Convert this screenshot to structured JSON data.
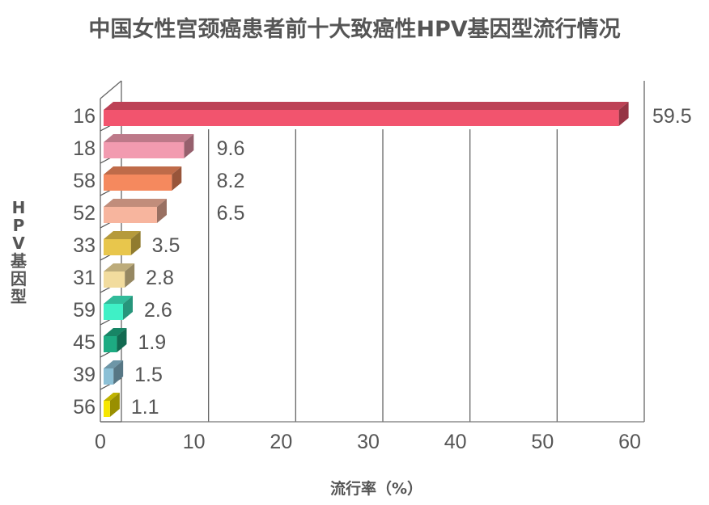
{
  "title": "中国女性宫颈癌患者前十大致癌性HPV基因型流行情况",
  "ylabel": "HPV基因型",
  "xlabel": "流行率（%）",
  "chart_data": {
    "type": "bar",
    "orientation": "horizontal",
    "style": "3d",
    "title": "中国女性宫颈癌患者前十大致癌性HPV基因型流行情况",
    "xlabel": "流行率（%）",
    "ylabel": "HPV基因型",
    "xlim": [
      0,
      60
    ],
    "xticks": [
      0,
      10,
      20,
      30,
      40,
      50,
      60
    ],
    "grid": "vertical",
    "legend": "none",
    "categories": [
      "16",
      "18",
      "58",
      "52",
      "33",
      "31",
      "59",
      "45",
      "39",
      "56"
    ],
    "values": [
      59.5,
      9.6,
      8.2,
      6.5,
      3.5,
      2.8,
      2.6,
      1.9,
      1.5,
      1.1
    ],
    "value_labels": [
      "59.5",
      "9.6",
      "8.2",
      "6.5",
      "3.5",
      "2.8",
      "2.6",
      "1.9",
      "1.5",
      "1.1"
    ],
    "colors": [
      "#f2546e",
      "#f29bb0",
      "#f5895e",
      "#f7b59e",
      "#e8c64c",
      "#f2dc9e",
      "#3ff0c6",
      "#1dab82",
      "#8cc0d6",
      "#f6e600"
    ]
  }
}
